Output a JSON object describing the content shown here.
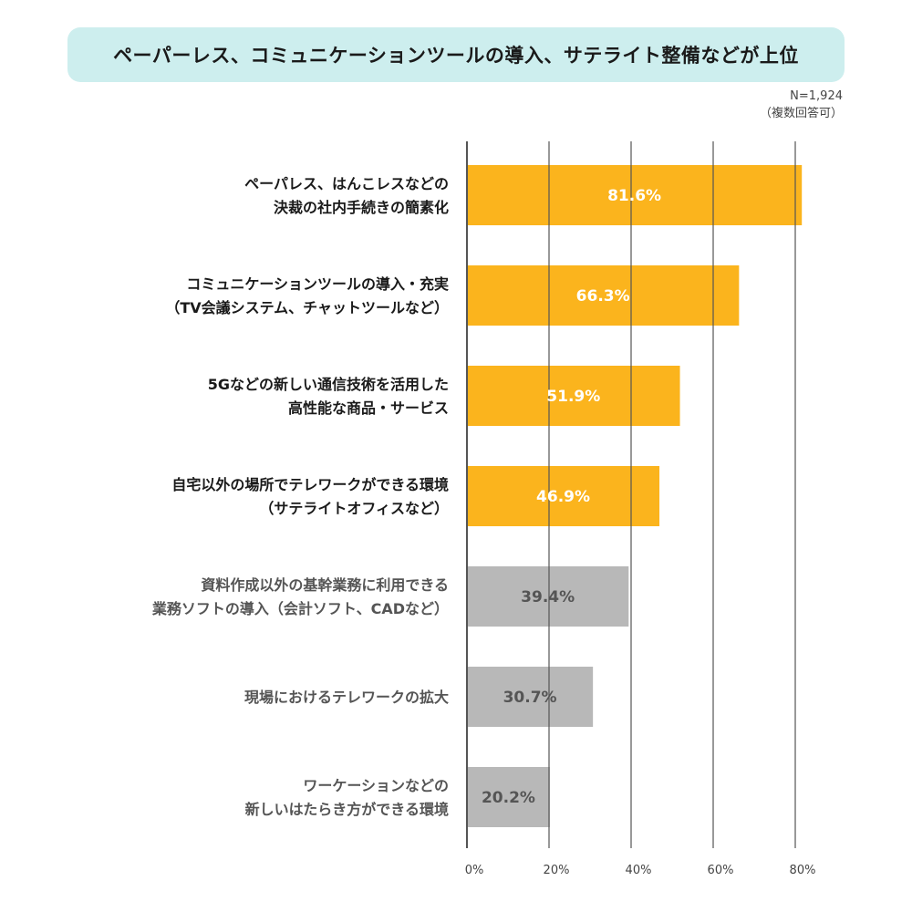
{
  "title": "ペーパーレス、コミュニケーションツールの導入、サテライト整備などが上位",
  "note_lines": [
    "N=1,924",
    "（複数回答可）"
  ],
  "colors": {
    "highlight": "#fbb41d",
    "muted": "#b8b8b8",
    "grid": "#555555",
    "title_bg": "#cdeeee",
    "label_dark": "#1a1a1a",
    "label_muted": "#555555"
  },
  "chart_data": {
    "type": "bar",
    "orientation": "horizontal",
    "value_suffix": "%",
    "xlim": [
      0,
      80
    ],
    "ticks": [
      "0%",
      "20%",
      "40%",
      "60%",
      "80%"
    ],
    "tick_values": [
      0,
      20,
      40,
      60,
      80
    ],
    "categories": [
      [
        "ペーパレス、はんこレスなどの",
        "決裁の社内手続きの簡素化"
      ],
      [
        "コミュニケーションツールの導入・充実",
        "（TV会議システム、チャットツールなど）"
      ],
      [
        "5Gなどの新しい通信技術を活用した",
        "高性能な商品・サービス"
      ],
      [
        "自宅以外の場所でテレワークができる環境",
        "（サテライトオフィスなど）"
      ],
      [
        "資料作成以外の基幹業務に利用できる",
        "業務ソフトの導入（会計ソフト、CADなど）"
      ],
      [
        "現場におけるテレワークの拡大"
      ],
      [
        "ワーケーションなどの",
        "新しいはたらき方ができる環境"
      ]
    ],
    "values": [
      81.6,
      66.3,
      51.9,
      46.9,
      39.4,
      30.7,
      20.2
    ],
    "value_labels": [
      "81.6%",
      "66.3%",
      "51.9%",
      "46.9%",
      "39.4%",
      "30.7%",
      "20.2%"
    ],
    "highlighted": [
      true,
      true,
      true,
      true,
      false,
      false,
      false
    ],
    "grid": true
  }
}
